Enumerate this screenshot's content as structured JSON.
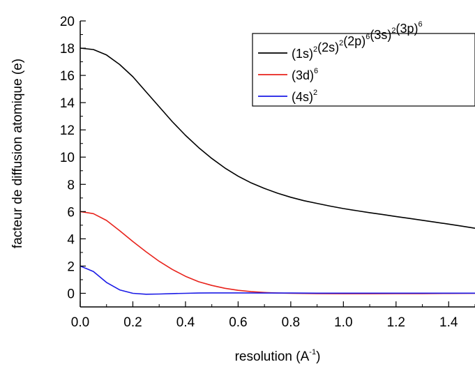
{
  "chart_data": {
    "type": "line",
    "xlabel": "resolution (A",
    "xlabel_sup": "-1",
    "xlabel_tail": ")",
    "ylabel": "facteur de diffusion atomique (e)",
    "xlim": [
      0.0,
      1.5
    ],
    "ylim": [
      -1,
      20
    ],
    "x_ticks": [
      "0.0",
      "0.2",
      "0.4",
      "0.6",
      "0.8",
      "1.0",
      "1.2",
      "1.4"
    ],
    "y_ticks": [
      "0",
      "2",
      "4",
      "6",
      "8",
      "10",
      "12",
      "14",
      "16",
      "18",
      "20"
    ],
    "grid": false,
    "legend_position": "top-right",
    "series": [
      {
        "name": "(1s)2(2s)2(2p)6(3s)2(3p)6",
        "legend_parts": [
          [
            "(1s)",
            "2"
          ],
          [
            "(2s)",
            "2"
          ],
          [
            "(2p)",
            "6"
          ],
          [
            "(3s)",
            "2"
          ],
          [
            "(3p)",
            "6"
          ]
        ],
        "color": "#000000",
        "x": [
          0.0,
          0.05,
          0.1,
          0.15,
          0.2,
          0.25,
          0.3,
          0.35,
          0.4,
          0.45,
          0.5,
          0.55,
          0.6,
          0.65,
          0.7,
          0.75,
          0.8,
          0.85,
          0.9,
          0.95,
          1.0,
          1.05,
          1.1,
          1.15,
          1.2,
          1.25,
          1.3,
          1.35,
          1.4,
          1.45,
          1.5
        ],
        "y": [
          18.0,
          17.9,
          17.5,
          16.8,
          15.9,
          14.8,
          13.7,
          12.6,
          11.6,
          10.7,
          9.9,
          9.2,
          8.6,
          8.1,
          7.7,
          7.35,
          7.05,
          6.8,
          6.6,
          6.4,
          6.22,
          6.07,
          5.92,
          5.78,
          5.64,
          5.5,
          5.36,
          5.22,
          5.08,
          4.93,
          4.78
        ]
      },
      {
        "name": "(3d)6",
        "legend_parts": [
          [
            "(3d)",
            "6"
          ]
        ],
        "color": "#e8231c",
        "x": [
          0.0,
          0.05,
          0.1,
          0.15,
          0.2,
          0.25,
          0.3,
          0.35,
          0.4,
          0.45,
          0.5,
          0.55,
          0.6,
          0.65,
          0.7,
          0.75,
          0.8,
          0.9,
          1.0,
          1.1,
          1.2,
          1.3,
          1.4,
          1.5
        ],
        "y": [
          6.0,
          5.85,
          5.35,
          4.6,
          3.8,
          3.05,
          2.35,
          1.75,
          1.25,
          0.85,
          0.58,
          0.37,
          0.22,
          0.12,
          0.06,
          0.02,
          0.0,
          -0.02,
          -0.03,
          -0.03,
          -0.02,
          -0.02,
          -0.01,
          0.0
        ]
      },
      {
        "name": "(4s)2",
        "legend_parts": [
          [
            "(4s)",
            "2"
          ]
        ],
        "color": "#1a1ae6",
        "x": [
          0.0,
          0.05,
          0.1,
          0.15,
          0.2,
          0.25,
          0.3,
          0.35,
          0.4,
          0.45,
          0.5,
          0.6,
          0.7,
          0.8,
          0.9,
          1.0,
          1.1,
          1.2,
          1.3,
          1.4,
          1.5
        ],
        "y": [
          2.0,
          1.6,
          0.8,
          0.25,
          0.0,
          -0.07,
          -0.05,
          -0.02,
          0.0,
          0.02,
          0.03,
          0.03,
          0.02,
          0.02,
          0.01,
          0.01,
          0.01,
          0.01,
          0.01,
          0.01,
          0.01
        ]
      }
    ]
  }
}
